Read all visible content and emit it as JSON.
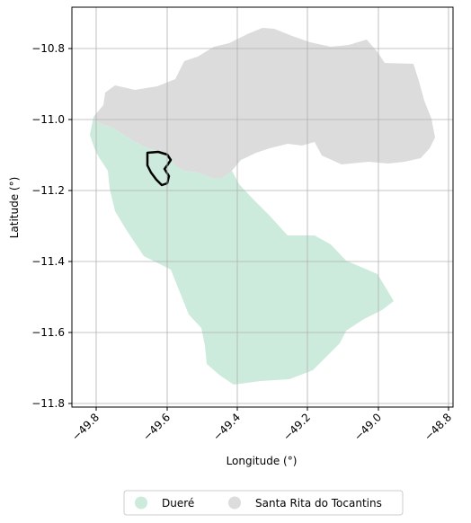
{
  "map": {
    "xlabel": "Longitude (°)",
    "ylabel": "Latitude (°)",
    "x_ticks": [
      "−49.8",
      "−49.6",
      "−49.4",
      "−49.2",
      "−49.0",
      "−48.8"
    ],
    "y_ticks": [
      "−10.8",
      "−11.0",
      "−11.2",
      "−11.4",
      "−11.6",
      "−11.8"
    ],
    "grid": true,
    "regions": [
      {
        "name": "Dueré",
        "color": "#cdebdc"
      },
      {
        "name": "Santa Rita do Tocantins",
        "color": "#dcdcdc"
      }
    ],
    "highlight_outline_color": "#000000",
    "legend_position": "bottom-center"
  }
}
